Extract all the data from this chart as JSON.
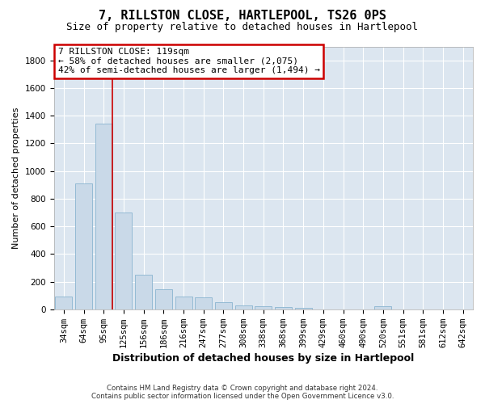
{
  "title": "7, RILLSTON CLOSE, HARTLEPOOL, TS26 0PS",
  "subtitle": "Size of property relative to detached houses in Hartlepool",
  "xlabel": "Distribution of detached houses by size in Hartlepool",
  "ylabel": "Number of detached properties",
  "footnote1": "Contains HM Land Registry data © Crown copyright and database right 2024.",
  "footnote2": "Contains public sector information licensed under the Open Government Licence v3.0.",
  "categories": [
    "34sqm",
    "64sqm",
    "95sqm",
    "125sqm",
    "156sqm",
    "186sqm",
    "216sqm",
    "247sqm",
    "277sqm",
    "308sqm",
    "338sqm",
    "368sqm",
    "399sqm",
    "429sqm",
    "460sqm",
    "490sqm",
    "520sqm",
    "551sqm",
    "581sqm",
    "612sqm",
    "642sqm"
  ],
  "values": [
    92,
    910,
    1340,
    700,
    248,
    143,
    90,
    88,
    50,
    28,
    22,
    15,
    10,
    0,
    0,
    0,
    20,
    0,
    0,
    0,
    0
  ],
  "bar_color": "#c9d9e8",
  "bar_edge_color": "#8ab4d0",
  "property_line_x": 2.43,
  "property_line_color": "#cc0000",
  "annotation_text": "7 RILLSTON CLOSE: 119sqm\n← 58% of detached houses are smaller (2,075)\n42% of semi-detached houses are larger (1,494) →",
  "annotation_box_color": "white",
  "annotation_box_edge_color": "#cc0000",
  "ylim": [
    0,
    1900
  ],
  "yticks": [
    0,
    200,
    400,
    600,
    800,
    1000,
    1200,
    1400,
    1600,
    1800
  ],
  "background_color": "#dce6f0",
  "plot_bg_color": "#dce6f0",
  "grid_color": "white",
  "title_fontsize": 11,
  "subtitle_fontsize": 9,
  "xlabel_fontsize": 9,
  "ylabel_fontsize": 8,
  "tick_fontsize": 7.5,
  "annotation_fontsize": 8
}
